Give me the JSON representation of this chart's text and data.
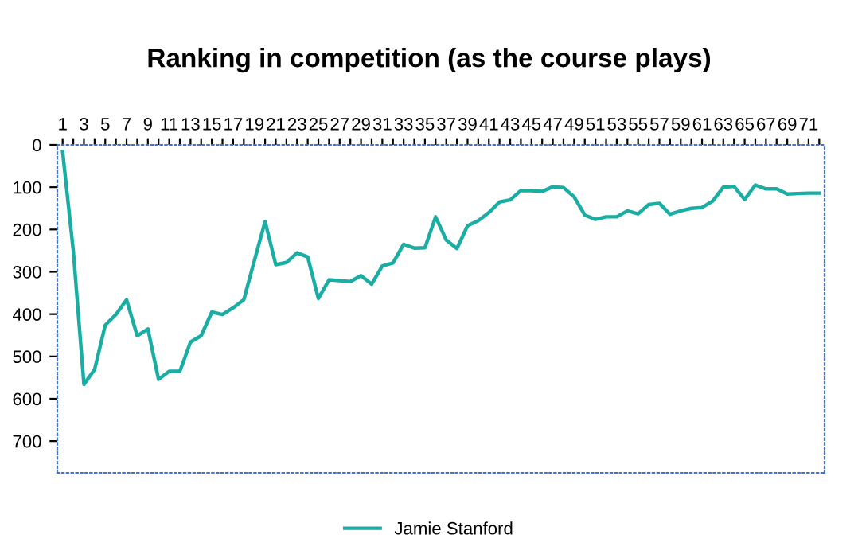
{
  "chart_data": {
    "type": "line",
    "title": "Ranking in competition (as the course plays)",
    "categories": [
      "1",
      null,
      "3",
      null,
      "5",
      null,
      "7",
      null,
      "9",
      null,
      "11",
      null,
      "13",
      null,
      "15",
      null,
      "17",
      null,
      "19",
      null,
      "21",
      null,
      "23",
      null,
      "25",
      null,
      "27",
      null,
      "29",
      null,
      "31",
      null,
      "33",
      null,
      "35",
      null,
      "37",
      null,
      "39",
      null,
      "41",
      null,
      "43",
      null,
      "45",
      null,
      "47",
      null,
      "49",
      null,
      "51",
      null,
      "53",
      null,
      "55",
      null,
      "57",
      null,
      "59",
      null,
      "61",
      null,
      "63",
      null,
      "65",
      null,
      "67",
      null,
      "69",
      null,
      "71",
      null
    ],
    "series": [
      {
        "name": "Jamie Stanford",
        "color": "#1aada3",
        "values": [
          16,
          250,
          566,
          531,
          426,
          401,
          366,
          451,
          435,
          554,
          535,
          535,
          466,
          451,
          395,
          401,
          385,
          366,
          273,
          181,
          283,
          278,
          255,
          265,
          363,
          319,
          321,
          323,
          309,
          329,
          286,
          279,
          235,
          244,
          243,
          170,
          225,
          245,
          191,
          179,
          160,
          135,
          130,
          108,
          108,
          110,
          99,
          101,
          123,
          166,
          176,
          170,
          170,
          156,
          163,
          141,
          138,
          164,
          156,
          150,
          148,
          133,
          100,
          98,
          129,
          95,
          104,
          104,
          116,
          115,
          114,
          114
        ]
      }
    ],
    "ylim": [
      775,
      0
    ],
    "yticks": [
      0,
      100,
      200,
      300,
      400,
      500,
      600,
      700
    ],
    "grid": false,
    "legend": "bottom",
    "marker": "none",
    "line_style": "solid"
  }
}
